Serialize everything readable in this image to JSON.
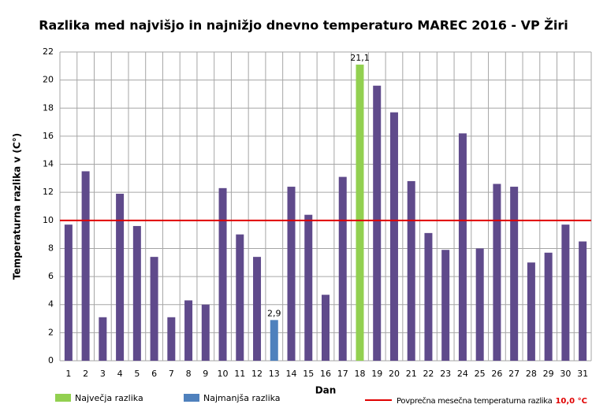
{
  "chart_data": {
    "type": "bar",
    "title": "Razlika med najvišjo  in najnižjo  dnevno  temperaturo  MAREC 2016 - VP Žiri",
    "y_label": "Temperaturna razlika v (C°)",
    "x_label": "Dan",
    "categories": [
      "1",
      "2",
      "3",
      "4",
      "5",
      "6",
      "7",
      "8",
      "9",
      "10",
      "11",
      "12",
      "13",
      "14",
      "15",
      "16",
      "17",
      "18",
      "19",
      "20",
      "21",
      "22",
      "23",
      "24",
      "25",
      "26",
      "27",
      "28",
      "29",
      "30",
      "31"
    ],
    "values": [
      9.7,
      13.5,
      3.1,
      11.9,
      9.6,
      7.4,
      3.1,
      4.3,
      4.0,
      12.3,
      9.0,
      7.4,
      2.9,
      12.4,
      10.4,
      4.7,
      13.1,
      21.1,
      19.6,
      17.7,
      12.8,
      9.1,
      7.9,
      16.2,
      8.0,
      12.6,
      12.4,
      7.0,
      7.7,
      9.7,
      8.5
    ],
    "value_labels": [
      null,
      null,
      null,
      null,
      null,
      null,
      null,
      null,
      null,
      null,
      null,
      null,
      "2,9",
      null,
      null,
      null,
      null,
      "21,1",
      null,
      null,
      null,
      null,
      null,
      null,
      null,
      null,
      null,
      null,
      null,
      null,
      null
    ],
    "color": "#5f4a8b",
    "bar_colors": [
      null,
      null,
      null,
      null,
      null,
      null,
      null,
      null,
      null,
      null,
      null,
      null,
      "#4f81bd",
      null,
      null,
      null,
      null,
      "#92d050",
      null,
      null,
      null,
      null,
      null,
      null,
      null,
      null,
      null,
      null,
      null,
      null,
      null
    ],
    "legend": [
      {
        "label": "Največja razlika",
        "color": "#92d050"
      },
      {
        "label": "Najmanjša razlika",
        "color": "#4f81bd"
      }
    ],
    "reference_line": {
      "value": 10.0,
      "color": "#e00000",
      "label": "Povprečna mesečna temperaturna razlika",
      "value_label": "10,0 °C"
    },
    "ylim": [
      0,
      22
    ],
    "yticks": [
      0,
      2,
      4,
      6,
      8,
      10,
      12,
      14,
      16,
      18,
      20,
      22
    ],
    "grid": true
  }
}
